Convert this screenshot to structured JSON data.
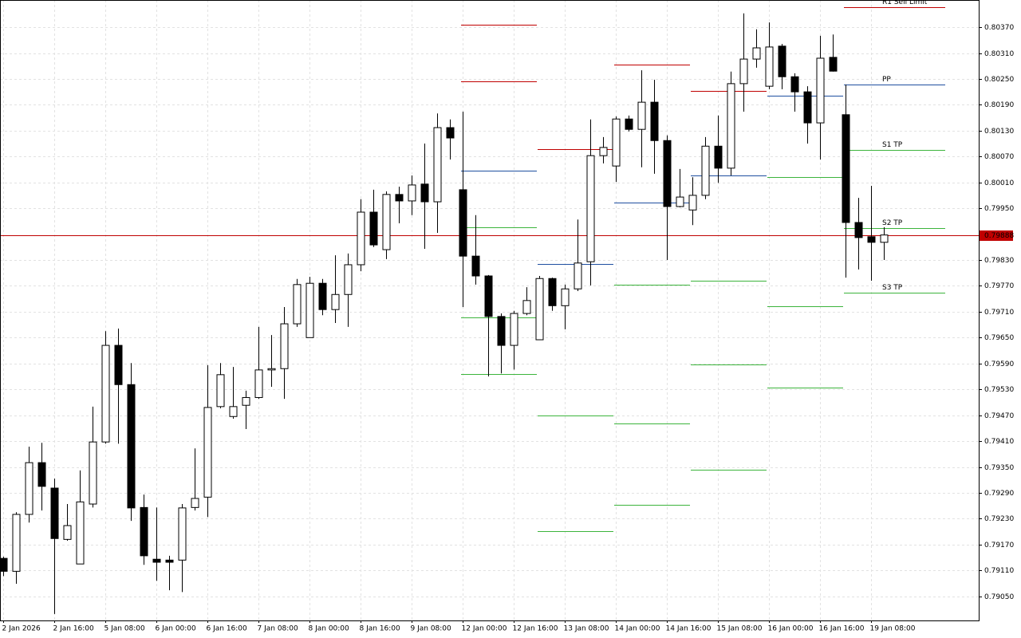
{
  "chart_data": {
    "type": "candlestick",
    "categories": [
      "2 Jan 2026",
      null,
      null,
      null,
      "2 Jan 16:00",
      null,
      null,
      null,
      "5 Jan 08:00",
      null,
      null,
      null,
      "6 Jan 00:00",
      null,
      null,
      null,
      "6 Jan 16:00",
      null,
      null,
      null,
      "7 Jan 08:00",
      null,
      null,
      null,
      "8 Jan 00:00",
      null,
      null,
      null,
      "8 Jan 16:00",
      null,
      null,
      null,
      "9 Jan 08:00",
      null,
      null,
      null,
      "12 Jan 00:00",
      null,
      null,
      null,
      "12 Jan 16:00",
      null,
      null,
      null,
      "13 Jan 08:00",
      null,
      null,
      null,
      "14 Jan 00:00",
      null,
      null,
      null,
      "14 Jan 16:00",
      null,
      null,
      null,
      "15 Jan 08:00",
      null,
      null,
      null,
      "16 Jan 00:00",
      null,
      null,
      null,
      "16 Jan 16:00",
      null,
      null,
      null,
      "19 Jan 08:00",
      null
    ],
    "open": [
      0.79138,
      0.79108,
      0.7924,
      0.7936,
      0.79301,
      0.79182,
      0.79125,
      0.79264,
      0.79408,
      0.79632,
      0.79541,
      0.79256,
      0.79136,
      0.79134,
      0.79134,
      0.79256,
      0.7928,
      0.7949,
      0.79467,
      0.79493,
      0.79511,
      0.79575,
      0.79578,
      0.79682,
      0.7965,
      0.79776,
      0.79715,
      0.7975,
      0.79819,
      0.79941,
      0.79854,
      0.79982,
      0.79967,
      0.80006,
      0.79965,
      0.80137,
      0.79993,
      0.79839,
      0.79793,
      0.79699,
      0.79632,
      0.79706,
      0.79645,
      0.79787,
      0.79724,
      0.79763,
      0.79826,
      0.80072,
      0.80048,
      0.80157,
      0.80133,
      0.80196,
      0.80107,
      0.79954,
      0.79946,
      0.7998,
      0.80094,
      0.80043,
      0.80239,
      0.80296,
      0.80233,
      0.80326,
      0.80255,
      0.8022,
      0.80148,
      0.803,
      0.80167,
      0.79917,
      0.79884,
      0.79871
    ],
    "high": [
      0.79142,
      0.79245,
      0.79397,
      0.79406,
      0.79323,
      0.79264,
      0.79342,
      0.7949,
      0.79665,
      0.79671,
      0.79591,
      0.79286,
      0.79256,
      0.79144,
      0.79264,
      0.79393,
      0.79586,
      0.79591,
      0.79582,
      0.79527,
      0.79675,
      0.79656,
      0.79721,
      0.79786,
      0.79791,
      0.79786,
      0.79841,
      0.79845,
      0.79971,
      0.79993,
      0.79989,
      0.8,
      0.80026,
      0.801,
      0.8017,
      0.80156,
      0.80174,
      0.79934,
      0.79795,
      0.79706,
      0.79712,
      0.79767,
      0.79793,
      0.79789,
      0.79773,
      0.79924,
      0.80156,
      0.80115,
      0.80163,
      0.80165,
      0.8027,
      0.80248,
      0.80119,
      0.80041,
      0.80022,
      0.80115,
      0.80165,
      0.80267,
      0.80402,
      0.80365,
      0.80381,
      0.80331,
      0.80263,
      0.80233,
      0.8035,
      0.80353,
      0.80237,
      0.79974,
      0.80002,
      0.79906
    ],
    "low": [
      0.79097,
      0.79079,
      0.79221,
      0.79249,
      0.79009,
      0.79179,
      0.79125,
      0.79256,
      0.79404,
      0.79404,
      0.79225,
      0.79123,
      0.79086,
      0.79064,
      0.7906,
      0.79249,
      0.79234,
      0.79486,
      0.79462,
      0.79438,
      0.79508,
      0.79536,
      0.79508,
      0.79675,
      0.7965,
      0.79702,
      0.79684,
      0.79675,
      0.79804,
      0.7986,
      0.79832,
      0.79915,
      0.79934,
      0.79856,
      0.79893,
      0.80063,
      0.79721,
      0.79773,
      0.7956,
      0.79567,
      0.79576,
      0.79702,
      0.79645,
      0.79712,
      0.79669,
      0.79758,
      0.79771,
      0.80054,
      0.80011,
      0.80128,
      0.80045,
      0.8003,
      0.7983,
      0.79952,
      0.79911,
      0.79971,
      0.80009,
      0.80026,
      0.80174,
      0.80276,
      0.80226,
      0.80226,
      0.80174,
      0.801,
      0.80063,
      0.80267,
      0.79789,
      0.79808,
      0.79782,
      0.7983
    ],
    "close": [
      0.79108,
      0.7924,
      0.7936,
      0.79305,
      0.79184,
      0.79214,
      0.79269,
      0.79408,
      0.79632,
      0.79541,
      0.79255,
      0.79144,
      0.79129,
      0.79129,
      0.79255,
      0.79277,
      0.79488,
      0.79564,
      0.7949,
      0.79511,
      0.79575,
      0.79578,
      0.79682,
      0.79773,
      0.79776,
      0.79715,
      0.7975,
      0.79819,
      0.79941,
      0.79865,
      0.79982,
      0.79967,
      0.80004,
      0.79965,
      0.80137,
      0.80113,
      0.79839,
      0.79793,
      0.79699,
      0.79632,
      0.79706,
      0.79736,
      0.79787,
      0.79724,
      0.79763,
      0.79823,
      0.80072,
      0.80091,
      0.80157,
      0.80133,
      0.80196,
      0.80107,
      0.79954,
      0.79976,
      0.7998,
      0.80094,
      0.80043,
      0.80239,
      0.80296,
      0.80322,
      0.80324,
      0.80255,
      0.8022,
      0.80148,
      0.80298,
      0.80268,
      0.79917,
      0.79882,
      0.79871,
      0.79888
    ],
    "up_color": "#ffffff",
    "down_color": "#000000",
    "outline_color": "#000000",
    "current_price": 0.79888,
    "current_price_color": "#c00000",
    "ylim": [
      0.78994,
      0.80433
    ],
    "yticks": [
      {
        "value": 0.8037,
        "label": "0.80370"
      },
      {
        "value": 0.8031,
        "label": "0.80310"
      },
      {
        "value": 0.8025,
        "label": "0.80250"
      },
      {
        "value": 0.8019,
        "label": "0.80190"
      },
      {
        "value": 0.8013,
        "label": "0.80130"
      },
      {
        "value": 0.8007,
        "label": "0.80070"
      },
      {
        "value": 0.8001,
        "label": "0.80010"
      },
      {
        "value": 0.7995,
        "label": "0.79950"
      },
      {
        "value": 0.7983,
        "label": "0.79830"
      },
      {
        "value": 0.7977,
        "label": "0.79770"
      },
      {
        "value": 0.7971,
        "label": "0.79710"
      },
      {
        "value": 0.7965,
        "label": "0.79650"
      },
      {
        "value": 0.7959,
        "label": "0.79590"
      },
      {
        "value": 0.7953,
        "label": "0.79530"
      },
      {
        "value": 0.7947,
        "label": "0.79470"
      },
      {
        "value": 0.7941,
        "label": "0.79410"
      },
      {
        "value": 0.7935,
        "label": "0.79350"
      },
      {
        "value": 0.7929,
        "label": "0.79290"
      },
      {
        "value": 0.7923,
        "label": "0.79230"
      },
      {
        "value": 0.7917,
        "label": "0.79170"
      },
      {
        "value": 0.7911,
        "label": "0.79110"
      },
      {
        "value": 0.7905,
        "label": "0.79050"
      }
    ],
    "grid": true,
    "pivot_days": [
      {
        "lines": [
          {
            "value": 0.80376,
            "color": "#c00000"
          },
          {
            "value": 0.80244,
            "color": "#c00000"
          },
          {
            "value": 0.80037,
            "color": "#1f4fa0"
          },
          {
            "value": 0.79906,
            "color": "#3cb43c"
          },
          {
            "value": 0.79697,
            "color": "#3cb43c"
          },
          {
            "value": 0.79565,
            "color": "#3cb43c"
          }
        ]
      },
      {
        "lines": [
          {
            "value": 0.80087,
            "color": "#c00000"
          },
          {
            "value": 0.79821,
            "color": "#1f4fa0"
          },
          {
            "value": 0.79469,
            "color": "#3cb43c"
          },
          {
            "value": 0.79201,
            "color": "#3cb43c"
          }
        ]
      },
      {
        "lines": [
          {
            "value": 0.80283,
            "color": "#c00000"
          },
          {
            "value": 0.79963,
            "color": "#1f4fa0"
          },
          {
            "value": 0.79773,
            "color": "#3cb43c"
          },
          {
            "value": 0.79451,
            "color": "#3cb43c"
          },
          {
            "value": 0.79262,
            "color": "#3cb43c"
          }
        ]
      },
      {
        "lines": [
          {
            "value": 0.80222,
            "color": "#c00000"
          },
          {
            "value": 0.80026,
            "color": "#1f4fa0"
          },
          {
            "value": 0.79782,
            "color": "#3cb43c"
          },
          {
            "value": 0.79588,
            "color": "#3cb43c"
          },
          {
            "value": 0.79343,
            "color": "#3cb43c"
          }
        ]
      },
      {
        "lines": [
          {
            "value": 0.80211,
            "color": "#1f4fa0"
          },
          {
            "value": 0.80022,
            "color": "#3cb43c"
          },
          {
            "value": 0.79723,
            "color": "#3cb43c"
          },
          {
            "value": 0.79534,
            "color": "#3cb43c"
          }
        ]
      },
      {
        "lines": [
          {
            "value": 0.80416,
            "color": "#c00000",
            "label": "R1 Sell Limit"
          },
          {
            "value": 0.80237,
            "color": "#1f4fa0",
            "label": "PP"
          },
          {
            "value": 0.80085,
            "color": "#3cb43c",
            "label": "S1 TP"
          },
          {
            "value": 0.79904,
            "color": "#3cb43c",
            "label": "S2 TP"
          },
          {
            "value": 0.79754,
            "color": "#3cb43c",
            "label": "S3 TP"
          }
        ]
      }
    ]
  }
}
